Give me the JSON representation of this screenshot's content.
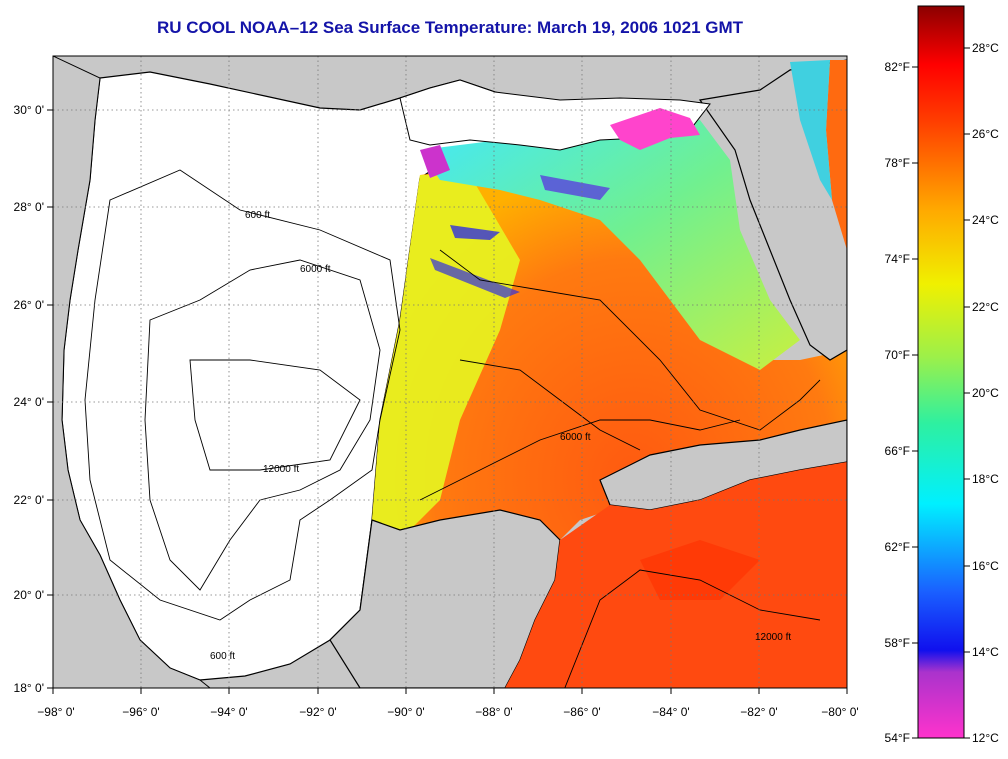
{
  "title": "RU COOL  NOAA–12  Sea Surface Temperature:  March 19, 2006 1021 GMT",
  "map": {
    "lon_labels": [
      "−98° 0'",
      "−96° 0'",
      "−94° 0'",
      "−92° 0'",
      "−90° 0'",
      "−88° 0'",
      "−86° 0'",
      "−84° 0'",
      "−82° 0'",
      "−80° 0'"
    ],
    "lat_labels": [
      "18° 0'",
      "20° 0'",
      "22° 0'",
      "24° 0'",
      "26° 0'",
      "28° 0'",
      "30° 0'"
    ],
    "lon_range": [
      -98,
      -80
    ],
    "lat_range": [
      18,
      31
    ],
    "contour_labels": [
      "600 ft",
      "6000 ft",
      "12000 ft"
    ],
    "colors": {
      "land": "#c8c8c8",
      "no_data": "#ffffff",
      "grid": "#777777"
    }
  },
  "colorbar": {
    "celsius_labels": [
      "28°C",
      "26°C",
      "24°C",
      "22°C",
      "20°C",
      "18°C",
      "16°C",
      "14°C",
      "12°C"
    ],
    "fahrenheit_labels": [
      "82°F",
      "78°F",
      "74°F",
      "70°F",
      "66°F",
      "62°F",
      "58°F",
      "54°F"
    ],
    "range_c": [
      12,
      29
    ]
  }
}
